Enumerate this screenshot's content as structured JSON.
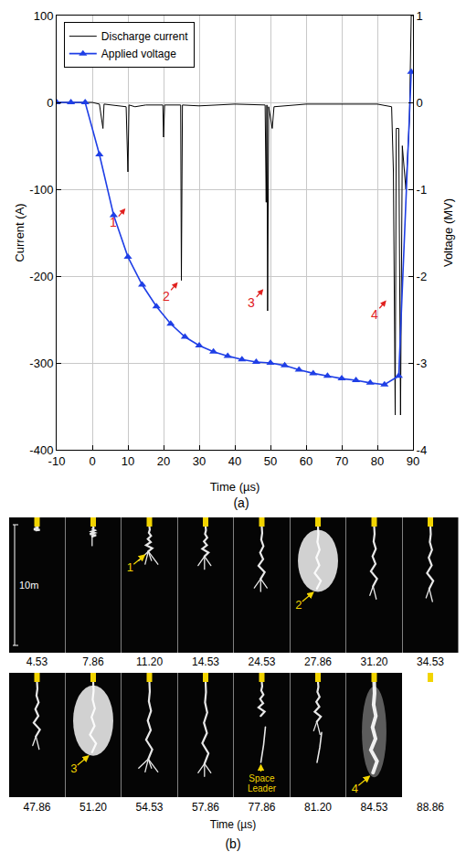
{
  "chart_data": {
    "type": "line",
    "caption": "(a)",
    "x_label": "Time (µs)",
    "y_label": "Current (A)",
    "y2_label": "Voltage (MV)",
    "xlim": [
      -10,
      90
    ],
    "xticks": [
      -10,
      0,
      10,
      20,
      30,
      40,
      50,
      60,
      70,
      80,
      90
    ],
    "ylim": [
      -400,
      100
    ],
    "yticks": [
      -400,
      -300,
      -200,
      -100,
      0,
      100
    ],
    "y2lim": [
      -4,
      1
    ],
    "y2ticks": [
      -4,
      -3,
      -2,
      -1,
      0,
      1
    ],
    "grid": true,
    "legend": "upper left",
    "series": [
      {
        "name": "Discharge current",
        "color": "#000000",
        "line_style": "solid",
        "x": [
          -10,
          0,
          2,
          3,
          3.3,
          5,
          9.5,
          10,
          10.3,
          12,
          15,
          19.8,
          20,
          20.3,
          24.8,
          25,
          25.3,
          30,
          40,
          48.5,
          48.8,
          49,
          49.2,
          49.5,
          50.5,
          51,
          60,
          70,
          80,
          84,
          84.5,
          85,
          85.3,
          86,
          86.5,
          87,
          88,
          89,
          89.5,
          90
        ],
        "values": [
          0,
          0,
          -2,
          -30,
          -2,
          -3,
          -5,
          -80,
          -3,
          -5,
          -3,
          -3,
          -40,
          -3,
          -3,
          -205,
          -3,
          -4,
          -2,
          -3,
          -115,
          -3,
          -240,
          -5,
          -30,
          -5,
          -2,
          -2,
          -2,
          -5,
          -80,
          -360,
          -30,
          -30,
          -360,
          -50,
          -100,
          -20,
          100,
          100
        ]
      },
      {
        "name": "Applied voltage",
        "color": "#1f3fe6",
        "marker": "triangle",
        "line_style": "solid",
        "axis": "y2",
        "x": [
          -10,
          -6,
          -2,
          2,
          6,
          10,
          14,
          18,
          22,
          26,
          30,
          34,
          38,
          42,
          46,
          50,
          54,
          58,
          62,
          66,
          70,
          74,
          78,
          82,
          86,
          89.5
        ],
        "values": [
          0,
          0,
          0,
          -0.6,
          -1.3,
          -1.78,
          -2.1,
          -2.35,
          -2.55,
          -2.7,
          -2.8,
          -2.87,
          -2.92,
          -2.96,
          -2.99,
          -3.0,
          -3.03,
          -3.08,
          -3.12,
          -3.15,
          -3.18,
          -3.2,
          -3.23,
          -3.25,
          -3.15,
          0.35
        ]
      }
    ],
    "annotations": [
      {
        "text": "1",
        "x": 9.3,
        "y": -122
      },
      {
        "text": "2",
        "x": 24,
        "y": -207
      },
      {
        "text": "3",
        "x": 48,
        "y": -215
      },
      {
        "text": "4",
        "x": 82.5,
        "y": -228
      }
    ]
  },
  "photo_panel": {
    "caption": "(b)",
    "time_label": "Time (µs)",
    "scale_label": "10m",
    "times": [
      "4.53",
      "7.86",
      "11.20",
      "14.53",
      "24.53",
      "27.86",
      "31.20",
      "34.53",
      "47.86",
      "51.20",
      "54.53",
      "57.86",
      "77.86",
      "81.20",
      "84.53",
      "88.86"
    ],
    "labels": [
      {
        "frame": 2,
        "text": "1"
      },
      {
        "frame": 5,
        "text": "2"
      },
      {
        "frame": 9,
        "text": "3"
      },
      {
        "frame": 12,
        "text": "Space Leader"
      },
      {
        "frame": 14,
        "text": "4"
      }
    ]
  }
}
